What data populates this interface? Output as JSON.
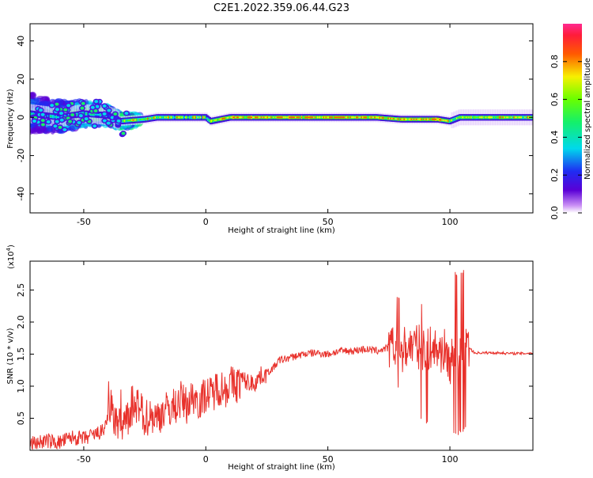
{
  "title": "C2E1.2022.359.06.44.G23",
  "chart_data": [
    {
      "type": "heatmap",
      "xlabel": "Height of straight line (km)",
      "ylabel": "Frequency (Hz)",
      "xlim": [
        -72,
        134
      ],
      "ylim": [
        -50,
        49
      ],
      "xticks": [
        -50,
        0,
        50,
        100
      ],
      "yticks": [
        -40,
        -20,
        0,
        20,
        40
      ],
      "xtick_labels": [
        "-50",
        "0",
        "50",
        "100"
      ],
      "ytick_labels": [
        "-40",
        "-20",
        "0",
        "20",
        "40"
      ],
      "colorbar": {
        "label": "Normalized spectral amplitude",
        "range": [
          0.0,
          1.0
        ],
        "ticks": [
          0.0,
          0.2,
          0.4,
          0.6,
          0.8
        ],
        "tick_labels": [
          "0.0",
          "0.2",
          "0.4",
          "0.6",
          "0.8"
        ],
        "colormap": "rainbow (white-violet-blue-cyan-green-yellow-red-magenta)"
      },
      "ridge": [
        {
          "x": -72,
          "y": 2
        },
        {
          "x": -60,
          "y": 0
        },
        {
          "x": -50,
          "y": 2
        },
        {
          "x": -40,
          "y": 1
        },
        {
          "x": -35,
          "y": -2
        },
        {
          "x": -25,
          "y": -1
        },
        {
          "x": -20,
          "y": 0
        },
        {
          "x": -10,
          "y": 0
        },
        {
          "x": 0,
          "y": 0
        },
        {
          "x": 2,
          "y": -2
        },
        {
          "x": 10,
          "y": 0
        },
        {
          "x": 50,
          "y": 0
        },
        {
          "x": 70,
          "y": 0
        },
        {
          "x": 80,
          "y": -1
        },
        {
          "x": 95,
          "y": -1
        },
        {
          "x": 100,
          "y": -2
        },
        {
          "x": 104,
          "y": 0
        },
        {
          "x": 134,
          "y": 0
        }
      ]
    },
    {
      "type": "line",
      "xlabel": "Height of straight line (km)",
      "ylabel": "SNR (10 * v/v)",
      "y_multiplier_label": "(x10",
      "y_multiplier_exp": "4",
      "xlim": [
        -72,
        134
      ],
      "ylim": [
        0.0,
        2.95
      ],
      "xticks": [
        -50,
        0,
        50,
        100
      ],
      "yticks": [
        0.5,
        1.0,
        1.5,
        2.0,
        2.5
      ],
      "xtick_labels": [
        "-50",
        "0",
        "50",
        "100"
      ],
      "ytick_labels": [
        "0.5",
        "1.0",
        "1.5",
        "2.0",
        "2.5"
      ],
      "series": [
        {
          "color": "#e8312b",
          "x": [
            -72,
            -65,
            -60,
            -55,
            -50,
            -45,
            -42,
            -40,
            -38,
            -35,
            -32,
            -30,
            -28,
            -25,
            -22,
            -20,
            -18,
            -15,
            -12,
            -10,
            -8,
            -5,
            -2,
            0,
            2,
            5,
            8,
            10,
            12,
            15,
            18,
            20,
            22,
            25,
            28,
            30,
            35,
            40,
            45,
            50,
            55,
            60,
            65,
            70,
            75,
            78,
            80,
            82,
            85,
            88,
            90,
            92,
            95,
            98,
            100,
            102,
            103,
            104,
            105,
            106,
            108,
            110,
            115,
            120,
            125,
            130,
            134
          ],
          "y": [
            0.1,
            0.15,
            0.12,
            0.2,
            0.18,
            0.25,
            0.3,
            0.55,
            0.5,
            0.35,
            0.45,
            0.6,
            0.65,
            0.5,
            0.55,
            0.5,
            0.6,
            0.65,
            0.7,
            0.8,
            0.7,
            0.85,
            0.75,
            0.9,
            0.85,
            1.0,
            0.95,
            1.05,
            1.0,
            1.1,
            1.05,
            1.05,
            1.15,
            1.2,
            1.3,
            1.4,
            1.45,
            1.5,
            1.52,
            1.5,
            1.55,
            1.55,
            1.58,
            1.55,
            1.6,
            1.6,
            1.55,
            1.6,
            1.65,
            1.6,
            1.5,
            1.6,
            1.55,
            1.55,
            1.35,
            1.5,
            1.4,
            1.5,
            1.45,
            1.55,
            1.6,
            1.52,
            1.52,
            1.52,
            1.51,
            1.51,
            1.52
          ]
        }
      ]
    }
  ]
}
